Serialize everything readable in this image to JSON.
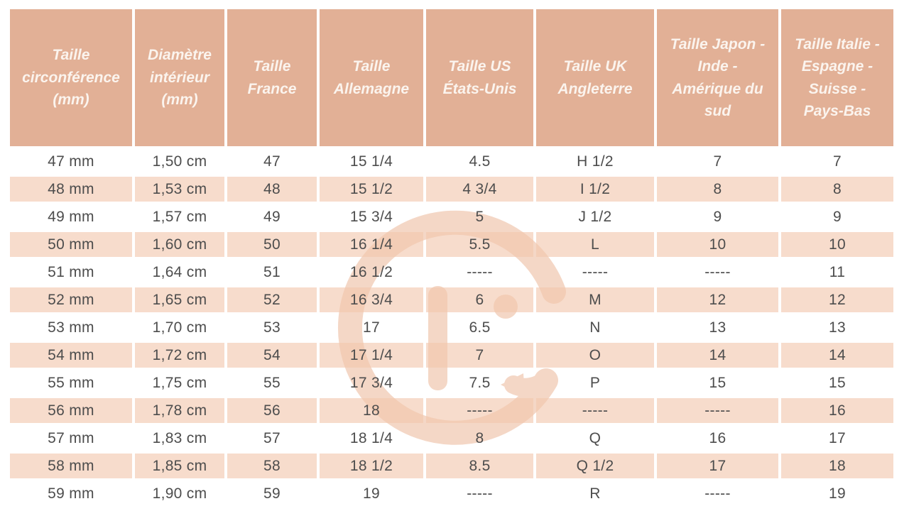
{
  "chart_data": {
    "type": "table",
    "columns": [
      "Taille circonférence (mm)",
      "Diamètre intérieur (mm)",
      "Taille France",
      "Taille Allemagne",
      "Taille US États-Unis",
      "Taille UK Angleterre",
      "Taille Japon - Inde - Amérique du sud",
      "Taille Italie - Espagne - Suisse - Pays-Bas"
    ],
    "rows": [
      [
        "47 mm",
        "1,50 cm",
        "47",
        "15 1/4",
        "4.5",
        "H 1/2",
        "7",
        "7"
      ],
      [
        "48 mm",
        "1,53 cm",
        "48",
        "15 1/2",
        "4 3/4",
        "I 1/2",
        "8",
        "8"
      ],
      [
        "49 mm",
        "1,57 cm",
        "49",
        "15 3/4",
        "5",
        "J 1/2",
        "9",
        "9"
      ],
      [
        "50 mm",
        "1,60 cm",
        "50",
        "16 1/4",
        "5.5",
        "L",
        "10",
        "10"
      ],
      [
        "51 mm",
        "1,64 cm",
        "51",
        "16 1/2",
        "-----",
        "-----",
        "-----",
        "11"
      ],
      [
        "52 mm",
        "1,65 cm",
        "52",
        "16 3/4",
        "6",
        "M",
        "12",
        "12"
      ],
      [
        "53 mm",
        "1,70 cm",
        "53",
        "17",
        "6.5",
        "N",
        "13",
        "13"
      ],
      [
        "54 mm",
        "1,72 cm",
        "54",
        "17 1/4",
        "7",
        "O",
        "14",
        "14"
      ],
      [
        "55 mm",
        "1,75 cm",
        "55",
        "17 3/4",
        "7.5",
        "P",
        "15",
        "15"
      ],
      [
        "56 mm",
        "1,78 cm",
        "56",
        "18",
        "-----",
        "-----",
        "-----",
        "16"
      ],
      [
        "57 mm",
        "1,83 cm",
        "57",
        "18 1/4",
        "8",
        "Q",
        "16",
        "17"
      ],
      [
        "58 mm",
        "1,85 cm",
        "58",
        "18 1/2",
        "8.5",
        "Q 1/2",
        "17",
        "18"
      ],
      [
        "59 mm",
        "1,90 cm",
        "59",
        "19",
        "-----",
        "R",
        "-----",
        "19"
      ]
    ]
  },
  "watermark": {
    "icon": "g-logo-watermark"
  },
  "style": {
    "header_bg": "#E2B096",
    "stripe_bg": "#F5DACB",
    "header_text": "#FBF4EE",
    "body_text": "#4D4D4D",
    "watermark_color": "#F4D7C6"
  }
}
